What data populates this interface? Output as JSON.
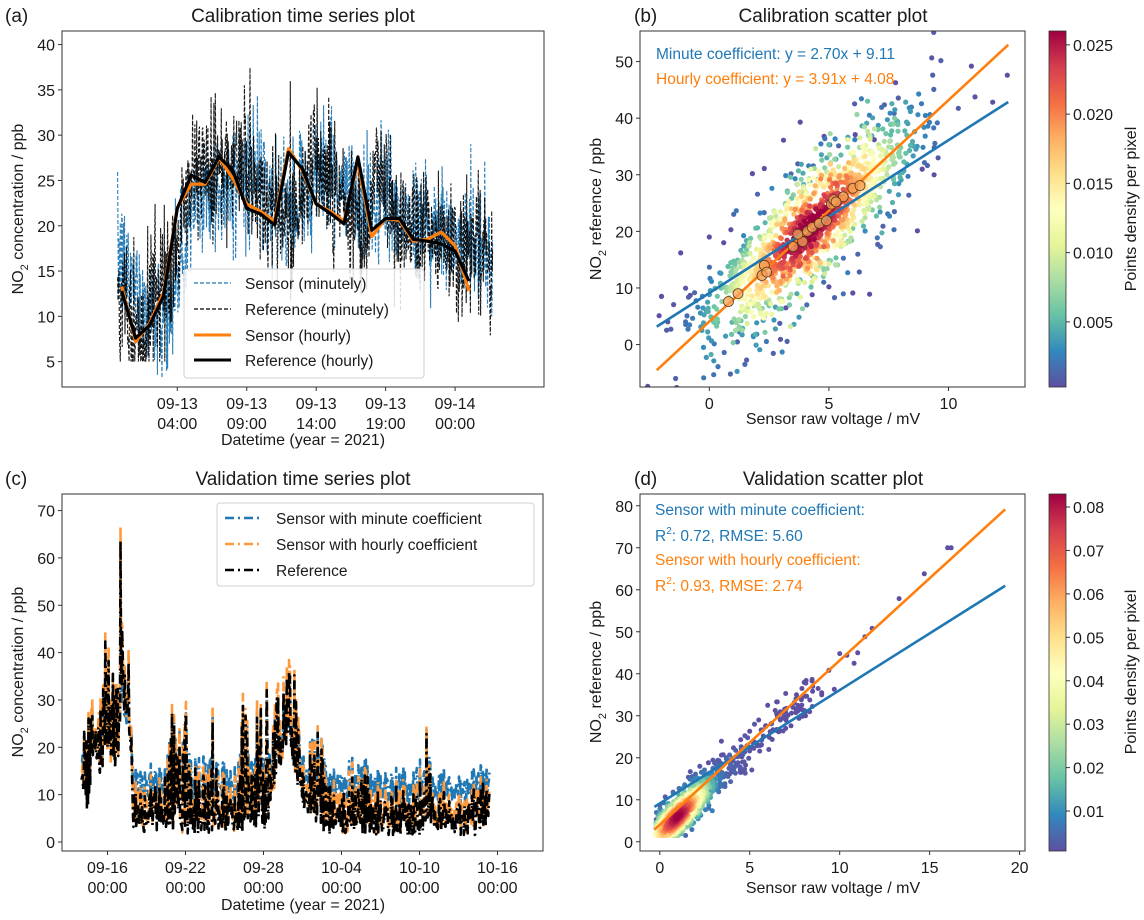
{
  "chart_data": [
    {
      "id": "a",
      "type": "line",
      "panel_label": "(a)",
      "title": "Calibration time series plot",
      "xlabel": "Datetime (year = 2021)",
      "ylabel": "NO2 concentration / ppb",
      "ylabel_main": "NO",
      "ylabel_sub": "2",
      "ylabel_rest": " concentration / ppb",
      "x_unit": "hours since 2021-09-13 00:00",
      "xlim": [
        -4.3,
        30.4
      ],
      "ylim": [
        2.2,
        41.5
      ],
      "yticks": [
        5,
        10,
        15,
        20,
        25,
        30,
        35,
        40
      ],
      "xticks": [
        {
          "value": 4,
          "line1": "09-13",
          "line2": "04:00"
        },
        {
          "value": 9,
          "line1": "09-13",
          "line2": "09:00"
        },
        {
          "value": 14,
          "line1": "09-13",
          "line2": "14:00"
        },
        {
          "value": 19,
          "line1": "09-13",
          "line2": "19:00"
        },
        {
          "value": 24,
          "line1": "09-14",
          "line2": "00:00"
        }
      ],
      "grid": false,
      "legend_position": "lower-center",
      "hourly_x": [
        0,
        1,
        2,
        3,
        4,
        5,
        6,
        7,
        8,
        9,
        10,
        11,
        12,
        13,
        14,
        15,
        16,
        17,
        18,
        19,
        20,
        21,
        22,
        23,
        24,
        25,
        26,
        27
      ],
      "series": [
        {
          "name": "Sensor (minutely)",
          "style": "dashed-thin",
          "color": "#1f77b4",
          "approx_hourly_mean": [
            16.5,
            14.0,
            11.0,
            10.0,
            12.0,
            19.0,
            23.5,
            24.0,
            24.0,
            25.5,
            25.0,
            22.5,
            21.5,
            21.0,
            27.0,
            26.0,
            24.0,
            23.0,
            21.0,
            24.0,
            22.5,
            20.0,
            20.5,
            20.0,
            18.5,
            18.0,
            18.5,
            15.0
          ],
          "approx_range": [
            3.2,
            35.0
          ]
        },
        {
          "name": "Reference (minutely)",
          "style": "dashed-thin",
          "color": "#000000",
          "approx_hourly_mean": [
            12.5,
            7.5,
            8.5,
            11.5,
            15.0,
            24.0,
            27.0,
            25.5,
            26.5,
            27.0,
            24.5,
            22.0,
            21.5,
            20.5,
            28.0,
            26.5,
            23.0,
            21.5,
            20.5,
            27.0,
            19.5,
            20.5,
            21.0,
            18.5,
            18.5,
            17.5,
            17.0,
            14.0
          ],
          "approx_range": [
            5.0,
            39.3
          ]
        },
        {
          "name": "Sensor (hourly)",
          "style": "solid-thick",
          "color": "#ff7f0e",
          "values": [
            13.3,
            7.2,
            9.2,
            12.6,
            22.0,
            24.6,
            24.6,
            27.5,
            25.2,
            22.4,
            21.6,
            20.5,
            28.5,
            26.1,
            22.4,
            21.6,
            20.5,
            27.1,
            18.8,
            20.8,
            20.6,
            18.3,
            18.5,
            19.3,
            17.8,
            12.8
          ]
        },
        {
          "name": "Reference (hourly)",
          "style": "solid-thick",
          "color": "#000000",
          "values": [
            12.8,
            7.6,
            9.0,
            12.2,
            21.9,
            25.6,
            24.8,
            27.6,
            26.1,
            21.9,
            21.3,
            20.1,
            28.1,
            26.3,
            22.4,
            21.4,
            20.2,
            27.6,
            19.5,
            20.8,
            20.8,
            18.5,
            18.3,
            18.0,
            17.2,
            13.9
          ]
        }
      ],
      "hourly_x_values": [
        0,
        1,
        2,
        3,
        4,
        5,
        6,
        7,
        8,
        9,
        10,
        11,
        12,
        13,
        14,
        15,
        16,
        17,
        18,
        19,
        20,
        21,
        22,
        23,
        24,
        25
      ]
    },
    {
      "id": "b",
      "type": "scatter",
      "panel_label": "(b)",
      "title": "Calibration scatter plot",
      "xlabel": "Sensor raw voltage / mV",
      "ylabel_main": "NO",
      "ylabel_sub": "2",
      "ylabel_rest": " reference / ppb",
      "xlim": [
        -2.9,
        13.2
      ],
      "ylim": [
        -7.5,
        55.4
      ],
      "xticks": [
        0,
        5,
        10
      ],
      "yticks": [
        0,
        10,
        20,
        30,
        40,
        50
      ],
      "grid": false,
      "annotations": [
        {
          "text": "Minute coefficient: y = 2.70x + 9.11",
          "color": "#1f77b4"
        },
        {
          "text": "Hourly coefficient: y = 3.91x + 4.08",
          "color": "#ff7f0e"
        }
      ],
      "fit_lines": [
        {
          "name": "Minute coefficient",
          "slope": 2.7,
          "intercept": 9.11,
          "x_range": [
            -2.2,
            12.5
          ],
          "color": "#1f77b4"
        },
        {
          "name": "Hourly coefficient",
          "slope": 3.91,
          "intercept": 4.08,
          "x_range": [
            -2.2,
            12.5
          ],
          "color": "#ff7f0e"
        }
      ],
      "density_cloud": {
        "center": [
          4.2,
          20.5
        ],
        "sd_major": 2.2,
        "sd_minor": 1.2,
        "slope": 2.9,
        "n_points": 1400,
        "x_range": [
          -2.2,
          9.5
        ],
        "y_range": [
          5,
          39.3
        ]
      },
      "outliers": [
        [
          -2.1,
          5.1
        ],
        [
          -2.0,
          8.5
        ],
        [
          -1.2,
          16.2
        ],
        [
          -0.8,
          8.7
        ],
        [
          0,
          19
        ],
        [
          0.6,
          18
        ],
        [
          0.9,
          20.3
        ],
        [
          1.8,
          30.2
        ],
        [
          2.3,
          31.1
        ],
        [
          3.1,
          36.1
        ],
        [
          3.8,
          39.3
        ],
        [
          4.8,
          36.8
        ],
        [
          6.1,
          37.1
        ],
        [
          6.9,
          36.2
        ],
        [
          8.9,
          31.0
        ],
        [
          9.4,
          30.0
        ],
        [
          8.7,
          20.1
        ],
        [
          6.7,
          8.9
        ],
        [
          6.0,
          9.1
        ],
        [
          4.3,
          8.8
        ],
        [
          3.2,
          6.5
        ],
        [
          5.0,
          10.2
        ]
      ],
      "hourly_points": [
        [
          0.8,
          7.6
        ],
        [
          1.2,
          9.0
        ],
        [
          2.2,
          12.2
        ],
        [
          2.3,
          14.0
        ],
        [
          2.4,
          12.8
        ],
        [
          3.5,
          17.3
        ],
        [
          3.9,
          18.2
        ],
        [
          3.7,
          19.5
        ],
        [
          4.1,
          20.0
        ],
        [
          4.3,
          20.7
        ],
        [
          4.6,
          21.4
        ],
        [
          4.9,
          21.9
        ],
        [
          5.1,
          24.8
        ],
        [
          5.2,
          25.6
        ],
        [
          5.6,
          26.1
        ],
        [
          6.0,
          27.6
        ],
        [
          6.3,
          28.1
        ],
        [
          5.3,
          25.2
        ]
      ],
      "colorbar": {
        "label": "Points density per pixel",
        "min": 0.0003,
        "max": 0.026,
        "ticks": [
          0.005,
          0.01,
          0.015,
          0.02,
          0.025
        ],
        "tick_labels": [
          "0.005",
          "0.010",
          "0.015",
          "0.020",
          "0.025"
        ],
        "colormap": "Spectral_r"
      }
    },
    {
      "id": "c",
      "type": "line",
      "panel_label": "(c)",
      "title": "Validation time series plot",
      "xlabel": "Datetime (year = 2021)",
      "ylabel_main": "NO",
      "ylabel_sub": "2",
      "ylabel_rest": " concentration / ppb",
      "x_unit": "days since 2021-09-16 00:00",
      "xlim": [
        -3.5,
        33.5
      ],
      "ylim": [
        -1.9,
        73.5
      ],
      "yticks": [
        0,
        10,
        20,
        30,
        40,
        50,
        60,
        70
      ],
      "xticks": [
        {
          "value": 0,
          "line1": "09-16",
          "line2": "00:00"
        },
        {
          "value": 6,
          "line1": "09-22",
          "line2": "00:00"
        },
        {
          "value": 12,
          "line1": "09-28",
          "line2": "00:00"
        },
        {
          "value": 18,
          "line1": "10-04",
          "line2": "00:00"
        },
        {
          "value": 24,
          "line1": "10-10",
          "line2": "00:00"
        },
        {
          "value": 30,
          "line1": "10-16",
          "line2": "00:00"
        }
      ],
      "grid": false,
      "legend_position": "upper-right",
      "data_x_range": [
        -2.0,
        29.4
      ],
      "reference_envelope": {
        "days": [
          -2.0,
          -1.5,
          -1.0,
          -0.5,
          0.0,
          0.5,
          0.7,
          1.0,
          1.3,
          1.6,
          2.0,
          3.0,
          4.0,
          5.0,
          5.5,
          6.0,
          7.0,
          8.0,
          9.0,
          10.0,
          10.6,
          11.0,
          11.5,
          12.0,
          12.5,
          13.0,
          13.5,
          14.0,
          14.5,
          15.0,
          15.5,
          16.0,
          17.0,
          18.0,
          19.0,
          20.0,
          21.0,
          22.0,
          23.0,
          24.0,
          24.4,
          25.0,
          26.0,
          27.0,
          28.0,
          29.4
        ],
        "peak": [
          22,
          33,
          27,
          30,
          48,
          35,
          36,
          70,
          37,
          38,
          12,
          10,
          12,
          28,
          22,
          28,
          14,
          26,
          15,
          8,
          45,
          10,
          28,
          45,
          24,
          44,
          35,
          40,
          30,
          25,
          20,
          25,
          12,
          10,
          14,
          12,
          10,
          12,
          9,
          10,
          30,
          10,
          8,
          10,
          10,
          12
        ],
        "base": [
          13,
          7,
          20,
          14,
          20,
          17,
          16,
          25,
          26,
          28,
          4,
          3,
          4,
          3,
          5,
          3,
          3,
          3,
          4,
          3,
          4,
          3,
          4,
          3,
          8,
          16,
          20,
          17,
          14,
          8,
          6,
          5,
          3,
          3,
          3,
          3,
          3,
          2,
          2,
          2,
          5,
          4,
          3,
          3,
          3,
          5
        ]
      },
      "series": [
        {
          "name": "Sensor with minute coefficient",
          "color": "#1f77b4",
          "relation": "2.70 * voltage + 9.11 (baseline ~11-14 ppb, compressed peaks)"
        },
        {
          "name": "Sensor with hourly coefficient",
          "color": "#ff7f0e",
          "relation": "3.91 * voltage + 4.08 (baseline ~5-9 ppb, peaks up to ~50)"
        },
        {
          "name": "Reference",
          "color": "#000000",
          "relation": "measured, range ~1.5-70 ppb"
        }
      ]
    },
    {
      "id": "d",
      "type": "scatter",
      "panel_label": "(d)",
      "title": "Validation scatter plot",
      "xlabel": "Sensor raw voltage / mV",
      "ylabel_main": "NO",
      "ylabel_sub": "2",
      "ylabel_rest": " reference / ppb",
      "xlim": [
        -1.1,
        20.3
      ],
      "ylim": [
        -2.2,
        82.8
      ],
      "xticks": [
        0,
        5,
        10,
        15,
        20
      ],
      "yticks": [
        0,
        10,
        20,
        30,
        40,
        50,
        60,
        70,
        80
      ],
      "grid": false,
      "annotations": [
        {
          "text": "Sensor with minute coefficient:",
          "color": "#1f77b4"
        },
        {
          "text_main": "R",
          "text_sup": "2",
          "text_rest": ": 0.72, RMSE: 5.60",
          "color": "#1f77b4"
        },
        {
          "text": "Sensor with hourly coefficient:",
          "color": "#ff7f0e"
        },
        {
          "text_main": "R",
          "text_sup": "2",
          "text_rest": ": 0.93, RMSE: 2.74",
          "color": "#ff7f0e"
        }
      ],
      "metrics": [
        {
          "name": "Sensor with minute coefficient",
          "r2": 0.72,
          "rmse": 5.6
        },
        {
          "name": "Sensor with hourly coefficient",
          "r2": 0.93,
          "rmse": 2.74
        }
      ],
      "fit_lines": [
        {
          "name": "Minute coefficient",
          "slope": 2.7,
          "intercept": 9.11,
          "x_range": [
            -0.3,
            19.2
          ],
          "color": "#1f77b4"
        },
        {
          "name": "Hourly coefficient",
          "slope": 3.91,
          "intercept": 4.08,
          "x_range": [
            -0.3,
            19.2
          ],
          "color": "#ff7f0e"
        }
      ],
      "density_cloud": {
        "center": [
          1.0,
          6.0
        ],
        "slope": 4.4,
        "sd_major": 0.9,
        "sd_minor": 0.5,
        "n_points": 900
      },
      "tail_points": [
        [
          16.0,
          70.0
        ],
        [
          16.2,
          70.0
        ],
        [
          14.7,
          63.8
        ],
        [
          13.3,
          57.9
        ],
        [
          11.8,
          50.8
        ],
        [
          11.4,
          48.8
        ],
        [
          10.0,
          44.8
        ],
        [
          10.4,
          44.4
        ],
        [
          11.0,
          45.0
        ],
        [
          10.8,
          42.5
        ],
        [
          9.4,
          40.8
        ],
        [
          9.0,
          35.0
        ],
        [
          8.8,
          36.5
        ],
        [
          7.9,
          36.5
        ],
        [
          7.6,
          35.0
        ],
        [
          7.0,
          35.3
        ],
        [
          6.0,
          32.5
        ],
        [
          7.4,
          32.0
        ],
        [
          7.0,
          27.0
        ],
        [
          5.5,
          29.0
        ],
        [
          5.0,
          26.3
        ],
        [
          4.5,
          24.3
        ],
        [
          4.8,
          22.5
        ],
        [
          5.5,
          23.0
        ],
        [
          3.7,
          20.0
        ],
        [
          4.6,
          19.0
        ],
        [
          4.5,
          16.5
        ],
        [
          3.2,
          18.5
        ],
        [
          2.7,
          18.8
        ],
        [
          2.2,
          14.0
        ],
        [
          1.3,
          12.8
        ],
        [
          0.4,
          7.5
        ],
        [
          6.5,
          30.5
        ],
        [
          6.7,
          29.0
        ],
        [
          8.1,
          30.0
        ],
        [
          8.5,
          37.0
        ],
        [
          9.7,
          36.3
        ],
        [
          5.9,
          27.5
        ],
        [
          6.3,
          26.5
        ],
        [
          9.0,
          35.5
        ]
      ],
      "colorbar": {
        "label": "Points density per pixel",
        "min": 0.0008,
        "max": 0.083,
        "ticks": [
          0.01,
          0.02,
          0.03,
          0.04,
          0.05,
          0.06,
          0.07,
          0.08
        ],
        "tick_labels": [
          "0.01",
          "0.02",
          "0.03",
          "0.04",
          "0.05",
          "0.06",
          "0.07",
          "0.08"
        ],
        "colormap": "Spectral_r"
      }
    }
  ]
}
